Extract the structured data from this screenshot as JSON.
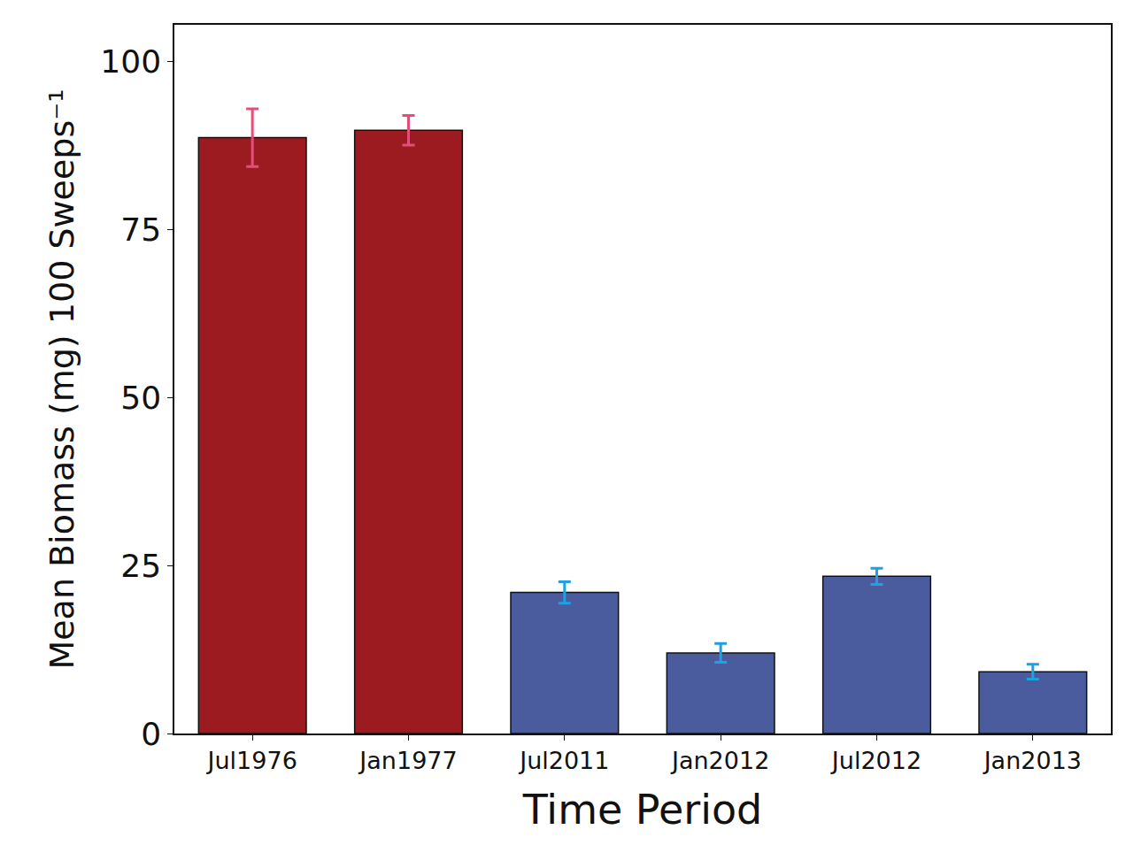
{
  "chart_data": {
    "type": "bar",
    "x_label": "Time Period",
    "y_label": "Mean Biomass (mg) 100 Sweeps⁻¹",
    "categories": [
      "Jul1976",
      "Jan1977",
      "Jul2011",
      "Jan2012",
      "Jul2012",
      "Jan2013"
    ],
    "values": [
      88.7,
      89.8,
      21.0,
      12.0,
      23.4,
      9.2
    ],
    "errors": [
      4.3,
      2.2,
      1.6,
      1.4,
      1.2,
      1.1
    ],
    "colors": [
      "#9b1b20",
      "#9b1b20",
      "#4a5c9e",
      "#4a5c9e",
      "#4a5c9e",
      "#4a5c9e"
    ],
    "ylim": [
      0,
      105.5
    ],
    "yticks": [
      0,
      25,
      50,
      75,
      100
    ],
    "grid": false
  }
}
